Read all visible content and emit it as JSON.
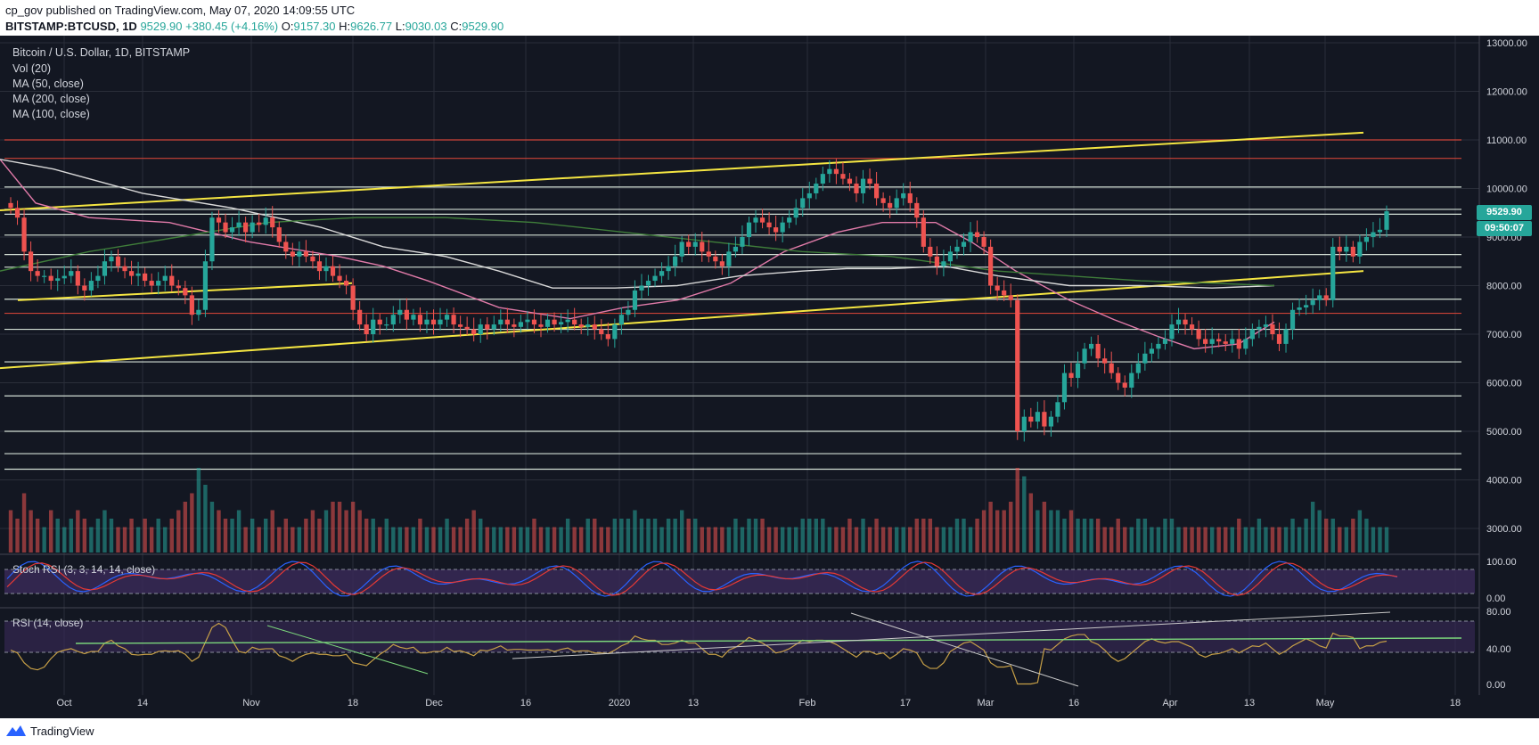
{
  "header": {
    "publisher": "cp_gov published on TradingView.com, May 07, 2020 14:09:55 UTC",
    "symbol": "BITSTAMP:BTCUSD, 1D",
    "last": "9529.90",
    "change": "+380.45 (+4.16%)",
    "o_label": "O:",
    "o": "9157.30",
    "h_label": "H:",
    "h": "9626.77",
    "l_label": "L:",
    "l": "9030.03",
    "c_label": "C:",
    "c": "9529.90"
  },
  "legend": {
    "title": "Bitcoin / U.S. Dollar, 1D, BITSTAMP",
    "vol": "Vol (20)",
    "ma50": "MA (50, close)",
    "ma200": "MA (200, close)",
    "ma100": "MA (100, close)"
  },
  "price_label": "9529.90",
  "countdown_label": "09:50:07",
  "stoch_label": "Stoch RSI (3, 3, 14, 14, close)",
  "rsi_label": "RSI (14, close)",
  "footer": {
    "brand": "TradingView"
  },
  "colors": {
    "bg": "#131722",
    "up": "#26a69a",
    "down": "#ef5350",
    "grid": "#2a2e39",
    "ma50": "#e07aa8",
    "ma100": "#d9d9d9",
    "ma200": "#3f7d3a",
    "trend": "#f5e642",
    "resistance_red": "#e0473a",
    "stoch_k": "#2962ff",
    "stoch_d": "#e53935",
    "rsi": "#c7a047",
    "band": "#3b2a5a"
  },
  "chart_data": {
    "type": "candlestick",
    "title": "Bitcoin / U.S. Dollar, 1D, BITSTAMP",
    "x_tick_labels": [
      "Oct",
      "14",
      "Nov",
      "18",
      "Dec",
      "16",
      "2020",
      "13",
      "Feb",
      "17",
      "Mar",
      "16",
      "Apr",
      "13",
      "May",
      "18"
    ],
    "price_axis": {
      "ticks": [
        3000,
        4000,
        5000,
        6000,
        7000,
        8000,
        9000,
        10000,
        11000,
        12000,
        13000
      ],
      "range": [
        2500,
        13000
      ]
    },
    "stoch_axis": {
      "ticks": [
        "100.00",
        "0.00"
      ]
    },
    "rsi_axis": {
      "ticks": [
        "80.00",
        "40.00",
        "0.00"
      ]
    },
    "close_series": [
      9600,
      9400,
      8700,
      8300,
      8200,
      8200,
      8100,
      8150,
      8200,
      8300,
      8000,
      7900,
      8100,
      8200,
      8500,
      8600,
      8400,
      8300,
      8200,
      8250,
      8100,
      8000,
      8100,
      8200,
      8000,
      7950,
      7800,
      7400,
      7500,
      8500,
      9400,
      9300,
      9100,
      9200,
      9300,
      9100,
      9300,
      9250,
      9400,
      9200,
      8900,
      8700,
      8600,
      8700,
      8600,
      8500,
      8300,
      8400,
      8200,
      8100,
      8000,
      7500,
      7200,
      7000,
      7300,
      7200,
      7200,
      7400,
      7500,
      7300,
      7400,
      7200,
      7300,
      7200,
      7300,
      7400,
      7200,
      7150,
      7100,
      7000,
      7200,
      7100,
      7200,
      7300,
      7200,
      7150,
      7250,
      7300,
      7200,
      7150,
      7300,
      7200,
      7250,
      7300,
      7200,
      7150,
      7200,
      7100,
      7000,
      6900,
      7200,
      7400,
      7500,
      7900,
      8000,
      8100,
      8200,
      8300,
      8400,
      8600,
      8900,
      8800,
      8900,
      8700,
      8600,
      8500,
      8400,
      8700,
      8800,
      9000,
      9300,
      9400,
      9300,
      9200,
      9100,
      9300,
      9400,
      9600,
      9800,
      9900,
      10100,
      10300,
      10400,
      10300,
      10200,
      10100,
      9900,
      10200,
      10100,
      9800,
      9700,
      9600,
      9800,
      9900,
      9700,
      9400,
      8800,
      8600,
      8400,
      8500,
      8700,
      8800,
      8900,
      9100,
      9000,
      8800,
      8000,
      7900,
      7800,
      7700,
      5000,
      5300,
      5200,
      5400,
      5100,
      5300,
      5600,
      6200,
      6100,
      6400,
      6700,
      6800,
      6500,
      6400,
      6200,
      6000,
      5900,
      6200,
      6400,
      6600,
      6700,
      6800,
      6900,
      7200,
      7300,
      7200,
      7100,
      6900,
      6800,
      6900,
      6850,
      6800,
      6900,
      6700,
      6900,
      7100,
      7150,
      7200,
      7000,
      6800,
      7100,
      7500,
      7550,
      7600,
      7700,
      7800,
      7700,
      8800,
      8700,
      8800,
      8600,
      8900,
      9000,
      9100,
      9150,
      9530
    ],
    "volume_relative": [
      0.5,
      0.4,
      0.7,
      0.5,
      0.4,
      0.3,
      0.5,
      0.4,
      0.3,
      0.4,
      0.5,
      0.4,
      0.3,
      0.4,
      0.5,
      0.4,
      0.3,
      0.3,
      0.4,
      0.3,
      0.4,
      0.3,
      0.4,
      0.3,
      0.4,
      0.5,
      0.6,
      0.7,
      1.0,
      0.8,
      0.6,
      0.5,
      0.4,
      0.4,
      0.5,
      0.3,
      0.4,
      0.3,
      0.4,
      0.5,
      0.3,
      0.4,
      0.3,
      0.3,
      0.4,
      0.5,
      0.4,
      0.5,
      0.6,
      0.6,
      0.5,
      0.6,
      0.5,
      0.4,
      0.4,
      0.3,
      0.4,
      0.3,
      0.3,
      0.3,
      0.3,
      0.4,
      0.3,
      0.3,
      0.3,
      0.4,
      0.3,
      0.3,
      0.4,
      0.5,
      0.4,
      0.3,
      0.3,
      0.3,
      0.3,
      0.3,
      0.3,
      0.3,
      0.4,
      0.3,
      0.3,
      0.3,
      0.3,
      0.4,
      0.3,
      0.3,
      0.4,
      0.4,
      0.3,
      0.3,
      0.4,
      0.4,
      0.4,
      0.5,
      0.4,
      0.4,
      0.4,
      0.3,
      0.4,
      0.4,
      0.5,
      0.4,
      0.4,
      0.3,
      0.3,
      0.3,
      0.3,
      0.3,
      0.4,
      0.3,
      0.4,
      0.4,
      0.4,
      0.3,
      0.3,
      0.3,
      0.3,
      0.3,
      0.4,
      0.4,
      0.4,
      0.4,
      0.3,
      0.3,
      0.3,
      0.4,
      0.3,
      0.4,
      0.3,
      0.4,
      0.3,
      0.3,
      0.3,
      0.3,
      0.3,
      0.4,
      0.4,
      0.4,
      0.3,
      0.3,
      0.3,
      0.4,
      0.4,
      0.3,
      0.4,
      0.5,
      0.6,
      0.5,
      0.5,
      0.6,
      1.0,
      0.9,
      0.7,
      0.5,
      0.6,
      0.5,
      0.5,
      0.4,
      0.5,
      0.4,
      0.4,
      0.4,
      0.4,
      0.3,
      0.3,
      0.4,
      0.3,
      0.3,
      0.4,
      0.4,
      0.3,
      0.3,
      0.4,
      0.4,
      0.3,
      0.3,
      0.3,
      0.3,
      0.3,
      0.3,
      0.3,
      0.3,
      0.3,
      0.4,
      0.3,
      0.3,
      0.4,
      0.3,
      0.3,
      0.3,
      0.3,
      0.4,
      0.3,
      0.4,
      0.6,
      0.5,
      0.4,
      0.4,
      0.3,
      0.3,
      0.4,
      0.5,
      0.4
    ],
    "ma50": [
      [
        0,
        10600
      ],
      [
        40,
        9700
      ],
      [
        100,
        9400
      ],
      [
        190,
        9300
      ],
      [
        280,
        8900
      ],
      [
        380,
        8600
      ],
      [
        430,
        8400
      ],
      [
        480,
        8100
      ],
      [
        560,
        7550
      ],
      [
        640,
        7320
      ],
      [
        700,
        7550
      ],
      [
        760,
        7700
      ],
      [
        820,
        8050
      ],
      [
        880,
        8700
      ],
      [
        940,
        9100
      ],
      [
        990,
        9300
      ],
      [
        1050,
        9300
      ],
      [
        1090,
        8900
      ],
      [
        1140,
        8300
      ],
      [
        1200,
        7700
      ],
      [
        1250,
        7300
      ],
      [
        1300,
        6950
      ],
      [
        1340,
        6700
      ],
      [
        1390,
        6800
      ],
      [
        1430,
        7250
      ]
    ],
    "ma100": [
      [
        0,
        10600
      ],
      [
        60,
        10400
      ],
      [
        160,
        9900
      ],
      [
        260,
        9600
      ],
      [
        360,
        9200
      ],
      [
        430,
        8800
      ],
      [
        500,
        8600
      ],
      [
        560,
        8300
      ],
      [
        620,
        7950
      ],
      [
        690,
        7950
      ],
      [
        760,
        8000
      ],
      [
        830,
        8200
      ],
      [
        900,
        8300
      ],
      [
        950,
        8350
      ],
      [
        1000,
        8350
      ],
      [
        1060,
        8400
      ],
      [
        1120,
        8200
      ],
      [
        1200,
        8000
      ],
      [
        1280,
        8000
      ],
      [
        1360,
        7950
      ],
      [
        1430,
        8000
      ]
    ],
    "ma200": [
      [
        0,
        8300
      ],
      [
        100,
        8700
      ],
      [
        200,
        9000
      ],
      [
        300,
        9300
      ],
      [
        400,
        9400
      ],
      [
        500,
        9400
      ],
      [
        600,
        9300
      ],
      [
        700,
        9100
      ],
      [
        800,
        8900
      ],
      [
        900,
        8700
      ],
      [
        1000,
        8600
      ],
      [
        1060,
        8450
      ],
      [
        1120,
        8300
      ],
      [
        1200,
        8200
      ],
      [
        1280,
        8100
      ],
      [
        1360,
        8050
      ],
      [
        1430,
        8000
      ]
    ],
    "trend_lines": [
      {
        "from": [
          0,
          6300
        ],
        "to": [
          1530,
          8300
        ]
      },
      {
        "from": [
          0,
          9550
        ],
        "to": [
          1530,
          11150
        ]
      },
      {
        "from": [
          20,
          7700
        ],
        "to": [
          395,
          8050
        ]
      }
    ],
    "horizontal_levels": [
      11000,
      10620,
      10030,
      9570,
      9470,
      9040,
      8640,
      8380,
      7720,
      7430,
      7100,
      6430,
      5730,
      5000,
      4540,
      4220
    ]
  }
}
